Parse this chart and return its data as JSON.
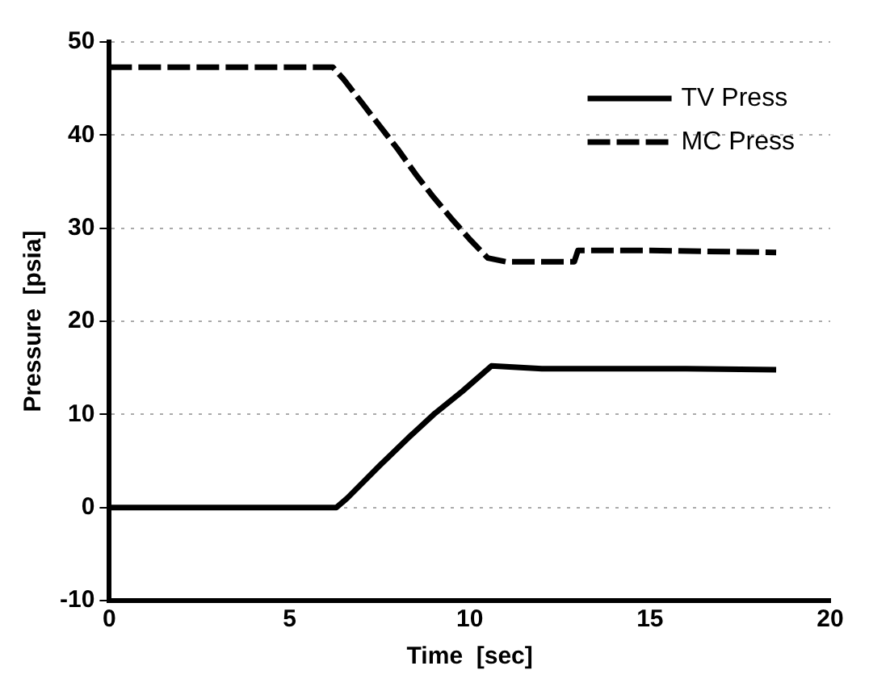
{
  "chart_data": {
    "type": "line",
    "xlabel": "Time  [sec]",
    "ylabel": "Pressure  [psia]",
    "xlim": [
      0,
      20
    ],
    "xticks": [
      0,
      5,
      10,
      15,
      20
    ],
    "ylim": [
      -10,
      50
    ],
    "yticks": [
      -10,
      0,
      10,
      20,
      30,
      40,
      50
    ],
    "grid": "y",
    "legend": "top right",
    "marker": "none",
    "series": [
      {
        "name": "TV Press",
        "color": "#000000",
        "line_style": "solid",
        "x": [
          0,
          6.3,
          6.6,
          7.5,
          8.3,
          9,
          9.8,
          10.6,
          12,
          14,
          16,
          18.5
        ],
        "values": [
          0,
          0,
          1,
          4.5,
          7.5,
          10,
          12.5,
          15.2,
          14.9,
          14.9,
          14.9,
          14.8
        ]
      },
      {
        "name": "MC Press",
        "color": "#000000",
        "line_style": "dashed",
        "x": [
          0,
          3,
          6.2,
          6.5,
          7,
          7.5,
          8,
          8.5,
          9,
          9.5,
          10,
          10.5,
          11,
          12,
          12.9,
          13,
          15,
          18.5
        ],
        "values": [
          47.3,
          47.3,
          47.3,
          46,
          43.5,
          41,
          38.5,
          35.8,
          33.3,
          31,
          28.8,
          26.8,
          26.4,
          26.4,
          26.4,
          27.6,
          27.6,
          27.4
        ]
      }
    ]
  }
}
